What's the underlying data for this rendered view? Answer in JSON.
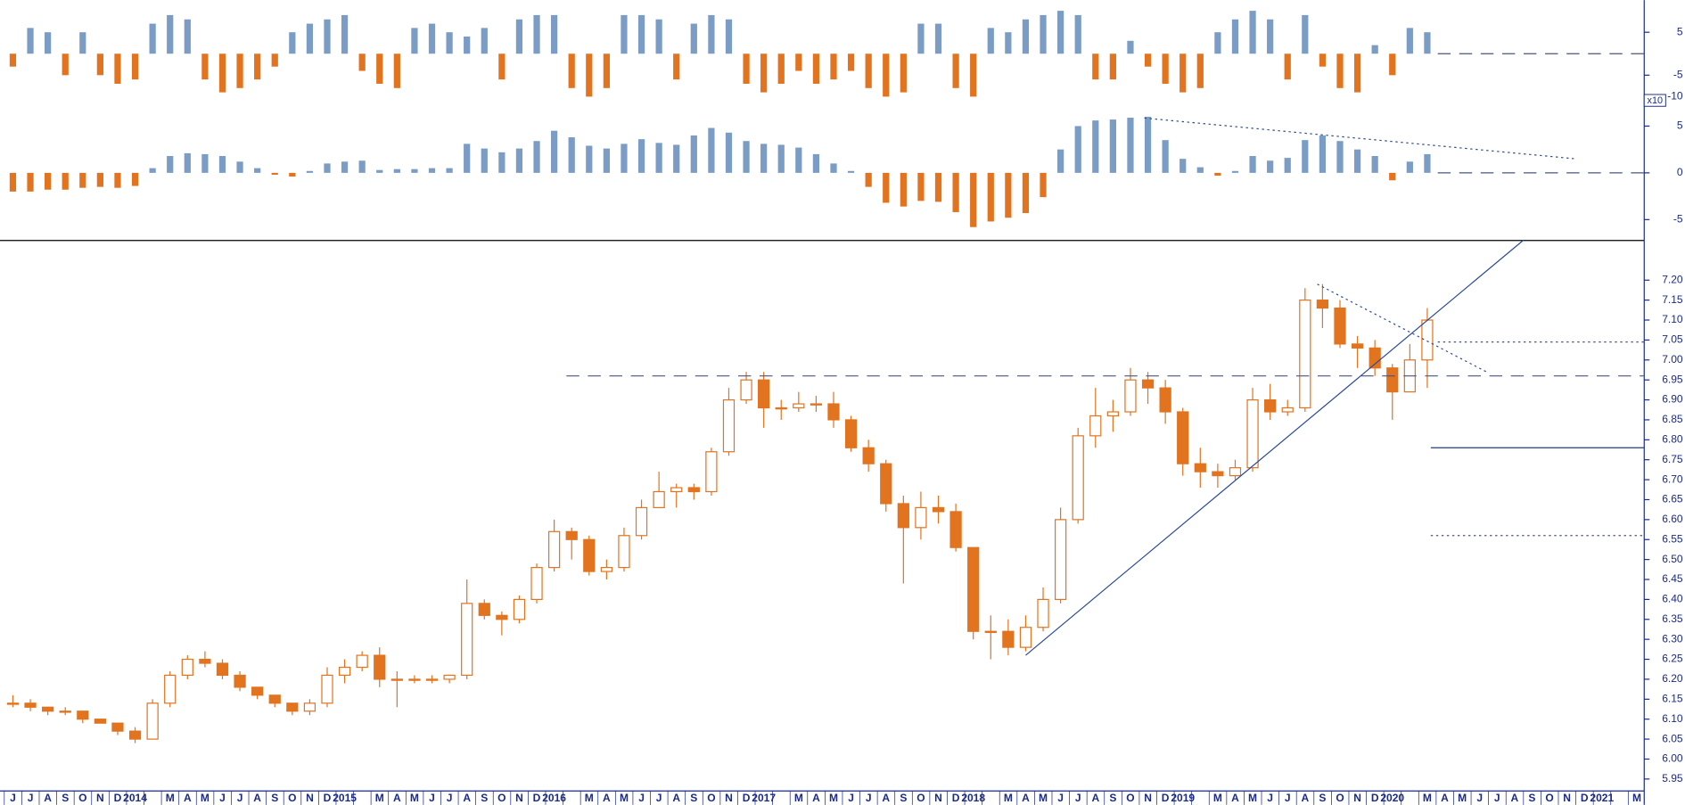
{
  "chart_data": [
    {
      "type": "bar",
      "color": "#7b9cc4",
      "negative_color": "#e2731f",
      "ylim": [
        -11,
        12.5
      ],
      "yticks": [
        -10,
        -5,
        5
      ],
      "levels": [
        {
          "value": 0,
          "style": "dashed",
          "from": 81.6
        }
      ],
      "values": [
        -3,
        6,
        5,
        -5,
        5,
        -5,
        -7,
        -6,
        7,
        9,
        8,
        -6,
        -9,
        -8,
        -6,
        -3,
        5,
        7,
        8,
        9,
        -4,
        -7,
        -8,
        6,
        7,
        5,
        4,
        6,
        -6,
        8,
        9,
        9,
        -8,
        -10,
        -8,
        9,
        9,
        8,
        -6,
        7,
        9,
        8,
        -7,
        -9,
        -7,
        -4,
        -7,
        -6,
        -4,
        -8,
        -10,
        -9,
        7,
        7,
        -8,
        -10,
        6,
        5,
        8,
        9,
        10,
        9,
        -6,
        -6,
        3,
        -3,
        -7,
        -9,
        -8,
        5,
        8,
        10,
        8,
        -6,
        9,
        -3,
        -8,
        -9,
        2,
        -5,
        6,
        5,
        null,
        null,
        null,
        null,
        null,
        null,
        null,
        null,
        null,
        null,
        null,
        null
      ]
    },
    {
      "type": "bar",
      "color": "#7b9cc4",
      "negative_color": "#e2731f",
      "scale_label": "x10",
      "ylim": [
        -7,
        7
      ],
      "yticks": [
        -5,
        0,
        5
      ],
      "levels": [
        {
          "value": 0,
          "style": "dashed",
          "from": 81.6
        }
      ],
      "trendlines": [
        {
          "x": [
            64.8,
            89.5
          ],
          "y": [
            5.86,
            1.5
          ],
          "style": "dotted"
        }
      ],
      "values": [
        -2,
        -2,
        -1.8,
        -1.8,
        -1.6,
        -1.5,
        -1.6,
        -1.4,
        0.5,
        1.8,
        2.1,
        2.0,
        1.8,
        1.2,
        0.5,
        -0.2,
        -0.4,
        0.2,
        1.0,
        1.2,
        1.3,
        0.3,
        0.4,
        0.4,
        0.5,
        0.5,
        3.1,
        2.6,
        2.2,
        2.6,
        3.4,
        4.5,
        3.8,
        2.9,
        2.6,
        3.1,
        3.6,
        3.2,
        3.0,
        4.0,
        4.8,
        4.3,
        3.4,
        3.1,
        3.0,
        2.7,
        2.0,
        1.0,
        0.2,
        -1.5,
        -3.2,
        -3.6,
        -3.0,
        -3.1,
        -4.2,
        -5.8,
        -5.2,
        -4.8,
        -4.3,
        -2.6,
        2.5,
        5.0,
        5.6,
        5.7,
        5.9,
        6.0,
        3.5,
        1.5,
        0.6,
        -0.3,
        0.2,
        1.8,
        1.3,
        1.6,
        3.5,
        4.0,
        3.4,
        2.5,
        1.8,
        -0.8,
        1.2,
        2.0,
        null,
        null,
        null,
        null,
        null,
        null,
        null,
        null,
        null,
        null,
        null,
        null
      ]
    },
    {
      "type": "candlestick",
      "color": "#e2731f",
      "ylim": [
        5.92,
        7.3
      ],
      "yticks": [
        5.95,
        {
          "value": 6.0,
          "label": "6.00"
        },
        6.05,
        {
          "value": 6.1,
          "label": "6.10"
        },
        6.15,
        {
          "value": 6.2,
          "label": "6.20"
        },
        6.25,
        {
          "value": 6.3,
          "label": "6.30"
        },
        6.35,
        {
          "value": 6.4,
          "label": "6.40"
        },
        6.45,
        {
          "value": 6.5,
          "label": "6.50"
        },
        6.55,
        {
          "value": 6.6,
          "label": "6.60"
        },
        6.65,
        {
          "value": 6.7,
          "label": "6.70"
        },
        6.75,
        {
          "value": 6.8,
          "label": "6.80"
        },
        6.85,
        {
          "value": 6.9,
          "label": "6.90"
        },
        6.95,
        {
          "value": 7.0,
          "label": "7.00"
        },
        7.05,
        {
          "value": 7.1,
          "label": "7.10"
        },
        7.15,
        {
          "value": 7.2,
          "label": "7.20"
        }
      ],
      "categories": [
        "J",
        "J",
        "A",
        "S",
        "O",
        "N",
        "D",
        "2014",
        null,
        "M",
        "A",
        "M",
        "J",
        "J",
        "A",
        "S",
        "O",
        "N",
        "D",
        "2015",
        null,
        "M",
        "A",
        "M",
        "J",
        "J",
        "A",
        "S",
        "O",
        "N",
        "D",
        "2016",
        null,
        "M",
        "A",
        "M",
        "J",
        "J",
        "A",
        "S",
        "O",
        "N",
        "D",
        "2017",
        null,
        "M",
        "A",
        "M",
        "J",
        "J",
        "A",
        "S",
        "O",
        "N",
        "D",
        "2018",
        null,
        "M",
        "A",
        "M",
        "J",
        "J",
        "A",
        "S",
        "O",
        "N",
        "D",
        "2019",
        null,
        "M",
        "A",
        "M",
        "J",
        "J",
        "A",
        "S",
        "O",
        "N",
        "D",
        "2020",
        null,
        "M",
        "A",
        "M",
        "J",
        "J",
        "A",
        "S",
        "O",
        "N",
        "D",
        "2021",
        null,
        "M"
      ],
      "open": [
        6.14,
        6.14,
        6.13,
        6.12,
        6.12,
        6.1,
        6.09,
        6.07,
        6.05,
        6.14,
        6.21,
        6.25,
        6.24,
        6.21,
        6.18,
        6.16,
        6.14,
        6.12,
        6.14,
        6.21,
        6.23,
        6.26,
        6.2,
        6.2,
        6.2,
        6.2,
        6.21,
        6.39,
        6.36,
        6.35,
        6.4,
        6.48,
        6.57,
        6.55,
        6.47,
        6.48,
        6.56,
        6.63,
        6.67,
        6.68,
        6.67,
        6.77,
        6.9,
        6.95,
        6.88,
        6.88,
        6.89,
        6.89,
        6.85,
        6.78,
        6.74,
        6.64,
        6.58,
        6.63,
        6.62,
        6.53,
        6.32,
        6.32,
        6.28,
        6.33,
        6.4,
        6.6,
        6.81,
        6.86,
        6.87,
        6.95,
        6.93,
        6.87,
        6.74,
        6.72,
        6.71,
        6.73,
        6.9,
        6.87,
        6.88,
        7.15,
        7.13,
        7.04,
        7.03,
        6.98,
        6.92,
        7.0,
        null,
        null,
        null,
        null,
        null,
        null,
        null,
        null,
        null,
        null,
        null,
        null
      ],
      "high": [
        6.16,
        6.15,
        6.13,
        6.13,
        6.12,
        6.1,
        6.09,
        6.08,
        6.15,
        6.22,
        6.26,
        6.27,
        6.25,
        6.22,
        6.18,
        6.16,
        6.14,
        6.15,
        6.23,
        6.25,
        6.27,
        6.28,
        6.22,
        6.21,
        6.21,
        6.21,
        6.45,
        6.4,
        6.37,
        6.41,
        6.49,
        6.6,
        6.58,
        6.56,
        6.5,
        6.58,
        6.65,
        6.72,
        6.69,
        6.69,
        6.78,
        6.93,
        6.97,
        6.97,
        6.9,
        6.92,
        6.91,
        6.92,
        6.86,
        6.8,
        6.75,
        6.66,
        6.67,
        6.66,
        6.64,
        6.53,
        6.36,
        6.35,
        6.36,
        6.43,
        6.63,
        6.83,
        6.93,
        6.9,
        6.98,
        6.97,
        6.95,
        6.88,
        6.78,
        6.74,
        6.75,
        6.93,
        6.94,
        6.9,
        7.18,
        7.19,
        7.15,
        7.06,
        7.05,
        6.99,
        7.04,
        7.13,
        null,
        null,
        null,
        null,
        null,
        null,
        null,
        null,
        null,
        null,
        null,
        null
      ],
      "low": [
        6.13,
        6.12,
        6.11,
        6.11,
        6.09,
        6.09,
        6.06,
        6.04,
        6.05,
        6.13,
        6.2,
        6.23,
        6.2,
        6.17,
        6.15,
        6.13,
        6.11,
        6.11,
        6.13,
        6.19,
        6.22,
        6.18,
        6.13,
        6.19,
        6.19,
        6.19,
        6.2,
        6.35,
        6.31,
        6.34,
        6.39,
        6.47,
        6.5,
        6.46,
        6.45,
        6.47,
        6.55,
        6.63,
        6.63,
        6.65,
        6.66,
        6.76,
        6.89,
        6.83,
        6.85,
        6.87,
        6.87,
        6.83,
        6.77,
        6.72,
        6.62,
        6.44,
        6.55,
        6.59,
        6.52,
        6.3,
        6.25,
        6.26,
        6.27,
        6.32,
        6.39,
        6.59,
        6.78,
        6.82,
        6.86,
        6.89,
        6.84,
        6.71,
        6.68,
        6.68,
        6.7,
        6.72,
        6.85,
        6.86,
        6.87,
        7.08,
        7.03,
        6.98,
        6.96,
        6.85,
        6.92,
        6.93,
        null,
        null,
        null,
        null,
        null,
        null,
        null,
        null,
        null,
        null,
        null,
        null
      ],
      "close": [
        6.14,
        6.13,
        6.12,
        6.12,
        6.1,
        6.09,
        6.07,
        6.05,
        6.14,
        6.21,
        6.25,
        6.24,
        6.21,
        6.18,
        6.16,
        6.14,
        6.12,
        6.14,
        6.21,
        6.23,
        6.26,
        6.2,
        6.2,
        6.2,
        6.2,
        6.21,
        6.39,
        6.36,
        6.35,
        6.4,
        6.48,
        6.57,
        6.55,
        6.47,
        6.48,
        6.56,
        6.63,
        6.67,
        6.68,
        6.67,
        6.77,
        6.9,
        6.95,
        6.88,
        6.88,
        6.89,
        6.89,
        6.85,
        6.78,
        6.74,
        6.64,
        6.58,
        6.63,
        6.62,
        6.53,
        6.32,
        6.32,
        6.28,
        6.33,
        6.4,
        6.6,
        6.81,
        6.86,
        6.87,
        6.95,
        6.93,
        6.87,
        6.74,
        6.72,
        6.71,
        6.73,
        6.9,
        6.87,
        6.88,
        7.15,
        7.13,
        7.04,
        7.03,
        6.98,
        6.92,
        7.0,
        7.1,
        null,
        null,
        null,
        null,
        null,
        null,
        null,
        null,
        null,
        null,
        null,
        null
      ],
      "levels": [
        {
          "value": 6.96,
          "style": "dashed",
          "from": 31.7
        },
        {
          "value": 7.045,
          "style": "dotted",
          "from": 81.6
        },
        {
          "value": 6.78,
          "style": "solid",
          "from": 81.2
        },
        {
          "value": 6.56,
          "style": "dotted",
          "from": 81.2
        }
      ],
      "trendlines": [
        {
          "x": [
            58,
            86.5
          ],
          "y": [
            6.26,
            7.3
          ],
          "style": "solid"
        },
        {
          "x": [
            74.7,
            84.4
          ],
          "y": [
            7.19,
            6.97
          ],
          "style": "dotted"
        }
      ]
    }
  ]
}
